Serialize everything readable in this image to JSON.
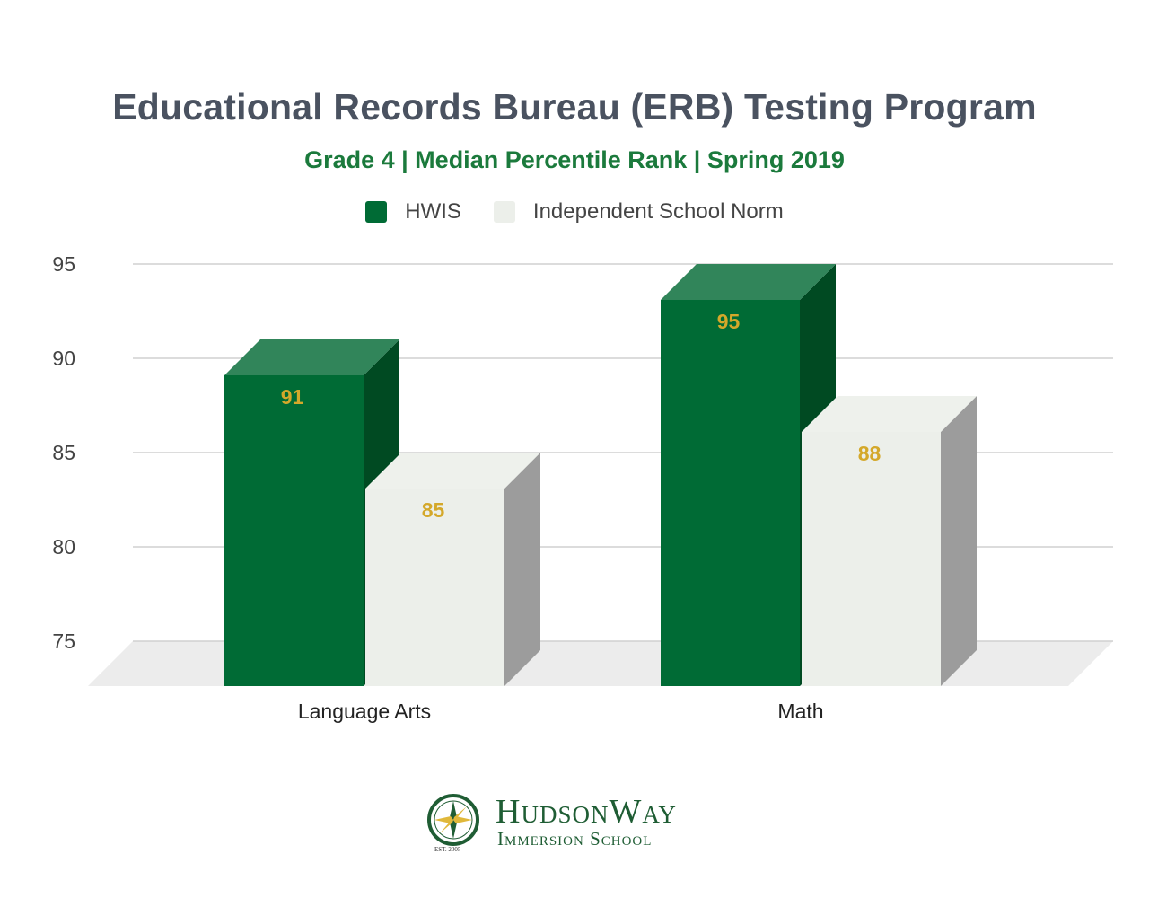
{
  "chart_data": {
    "type": "bar",
    "title": "Educational Records Bureau (ERB) Testing Program",
    "subtitle": "Grade 4 | Median Percentile Rank | Spring 2019",
    "categories": [
      "Language Arts",
      "Math"
    ],
    "series": [
      {
        "name": "HWIS",
        "values": [
          91,
          95
        ],
        "color": "#006b35"
      },
      {
        "name": "Independent School Norm",
        "values": [
          85,
          88
        ],
        "color": "#ecefea"
      }
    ],
    "ylim": [
      75,
      95
    ],
    "yticks": [
      95,
      90,
      85,
      80,
      75
    ],
    "grid": true,
    "legend_position": "top",
    "style": "3d",
    "label_color": "#d4a82a"
  },
  "logo": {
    "name": "HudsonWay",
    "subtitle": "Immersion School",
    "established": "EST. 2005"
  }
}
